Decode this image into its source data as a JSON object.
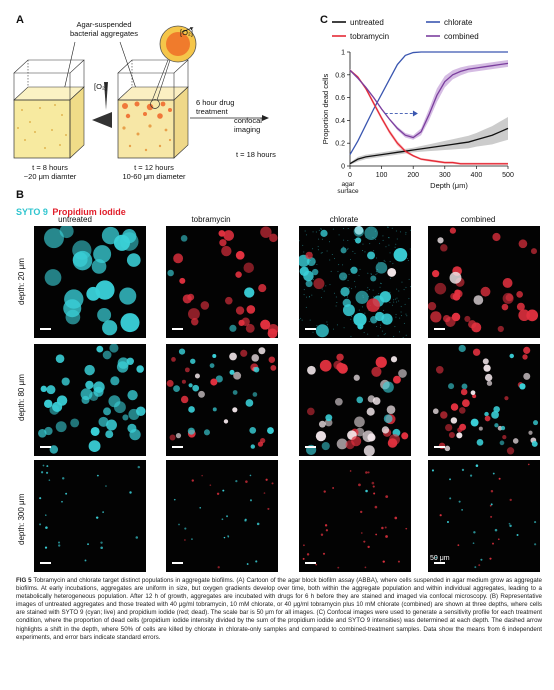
{
  "panelA": {
    "letter": "A",
    "aggregates_label_line1": "Agar-suspended",
    "aggregates_label_line2": "bacterial aggregates",
    "o2_label": "[O₂]",
    "o2_label_inset": "[O₂]",
    "box1_caption_line1": "t = 8 hours",
    "box1_caption_line2": "~20 μm diamter",
    "box2_caption_line1": "t = 12 hours",
    "box2_caption_line2": "10-60 μm diameter",
    "drug_line1": "6 hour drug",
    "drug_line2": "treatment",
    "imaging_line1": "confocal",
    "imaging_line2": "imaging",
    "final_time": "t = 18 hours"
  },
  "panelB": {
    "letter": "B",
    "stain_cyan": "SYTO 9",
    "stain_red": "Propidium iodide",
    "columns": [
      "untreated",
      "tobramycin",
      "chlorate",
      "combined"
    ],
    "rows": [
      "depth: 20 μm",
      "depth: 80 μm",
      "depth: 300 μm"
    ],
    "scale_label": "50 μm"
  },
  "panelC": {
    "letter": "C",
    "legend": {
      "untreated": "untreated",
      "chlorate": "chlorate",
      "tobramycin": "tobramycin",
      "combined": "combined"
    },
    "colors": {
      "untreated": "#111111",
      "chlorate": "#3a56b0",
      "tobramycin": "#e52a36",
      "combined": "#7b3f9e"
    }
  },
  "chart_data": {
    "type": "line",
    "title": "",
    "xlabel": "Depth (μm)",
    "ylabel": "Proportion dead cells",
    "x_extra_label_line1": "agar",
    "x_extra_label_line2": "surface",
    "xlim": [
      0,
      500
    ],
    "ylim": [
      0,
      1
    ],
    "xticks": [
      0,
      100,
      200,
      300,
      400,
      500
    ],
    "yticks": [
      0,
      0.2,
      0.4,
      0.6,
      0.8,
      1
    ],
    "x": [
      0,
      25,
      50,
      75,
      100,
      125,
      150,
      175,
      200,
      225,
      250,
      275,
      300,
      325,
      350,
      375,
      400,
      425,
      450,
      475,
      500
    ],
    "series": [
      {
        "name": "untreated",
        "values": [
          0.02,
          0.06,
          0.08,
          0.09,
          0.1,
          0.11,
          0.12,
          0.13,
          0.14,
          0.15,
          0.16,
          0.17,
          0.18,
          0.19,
          0.2,
          0.21,
          0.23,
          0.25,
          0.27,
          0.3,
          0.33
        ]
      },
      {
        "name": "chlorate",
        "values": [
          0.1,
          0.22,
          0.36,
          0.5,
          0.63,
          0.76,
          0.89,
          0.97,
          0.995,
          1,
          1,
          1,
          1,
          1,
          1,
          1,
          1,
          1,
          1,
          1,
          1
        ]
      },
      {
        "name": "tobramycin",
        "values": [
          0.84,
          0.78,
          0.68,
          0.55,
          0.42,
          0.3,
          0.2,
          0.13,
          0.09,
          0.06,
          0.05,
          0.04,
          0.03,
          0.03,
          0.02,
          0.02,
          0.02,
          0.02,
          0.02,
          0.02,
          0.02
        ]
      },
      {
        "name": "combined",
        "values": [
          0.84,
          0.77,
          0.69,
          0.6,
          0.5,
          0.41,
          0.33,
          0.27,
          0.25,
          0.3,
          0.45,
          0.62,
          0.74,
          0.8,
          0.83,
          0.85,
          0.86,
          0.87,
          0.88,
          0.89,
          0.9
        ]
      }
    ],
    "error_band": {
      "untreated_upper_at_500": 0.42,
      "untreated_lower_at_500": 0.22
    },
    "annotation": {
      "type": "dashed-arrow",
      "from": [
        110,
        0.46
      ],
      "to": [
        215,
        0.46
      ]
    },
    "legend_placement": "top"
  },
  "caption": {
    "fig": "FIG 5",
    "text": "Tobramycin and chlorate target distinct populations in aggregate biofilms. (A) Cartoon of the agar block biofilm assay (ABBA), where cells suspended in agar medium grow as aggregate biofilms. At early incubations, aggregates are uniform in size, but oxygen gradients develop over time, both within the aggregate population and within individual aggregates, leading to a metabolically heterogeneous population. After 12 h of growth, aggregates are incubated with drugs for 6 h before they are stained and imaged via confocal microscopy. (B) Representative images of untreated aggregates and those treated with 40 μg/ml tobramycin, 10 mM chlorate, or 40 μg/ml tobramycin plus 10 mM chlorate (combined) are shown at three depths, where cells are stained with SYTO 9 (cyan; live) and propidium iodide (red; dead). The scale bar is 50 μm for all images. (C) Confocal images were used to generate a sensitivity profile for each treatment condition, where the proportion of dead cells (propidium iodide intensity divided by the sum of the propidium iodide and SYTO 9 intensities) was determined at each depth. The dashed arrow highlights a shift in the depth, where 50% of cells are killed by chlorate in chlorate-only samples and compared to combined-treatment samples. Data show the means from 6 independent experiments, and error bars indicate standard errors."
  }
}
